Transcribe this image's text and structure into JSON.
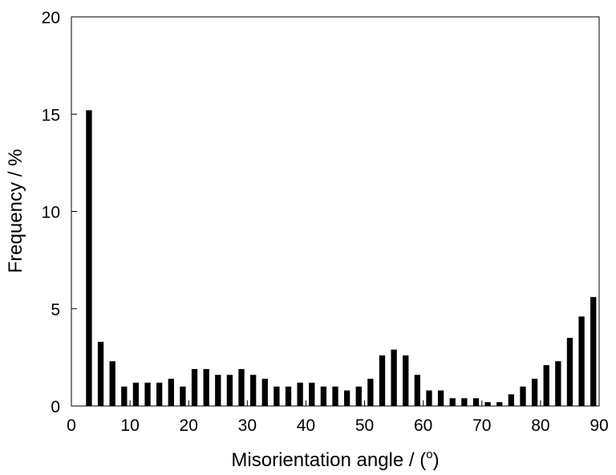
{
  "chart_data": {
    "type": "bar",
    "xlabel": "Misorientation angle / (",
    "xlabel_sup": "o",
    "xlabel_end": ")",
    "ylabel": "Frequency / %",
    "xlim": [
      0,
      90
    ],
    "ylim": [
      0,
      20
    ],
    "xticks": [
      0,
      10,
      20,
      30,
      40,
      50,
      60,
      70,
      80,
      90
    ],
    "yticks": [
      0,
      5,
      10,
      15,
      20
    ],
    "bar_width": 1.0,
    "x": [
      3,
      5,
      7,
      9,
      11,
      13,
      15,
      17,
      19,
      21,
      23,
      25,
      27,
      29,
      31,
      33,
      35,
      37,
      39,
      41,
      43,
      45,
      47,
      49,
      51,
      53,
      55,
      57,
      59,
      61,
      63,
      65,
      67,
      69,
      71,
      73,
      75,
      77,
      79,
      81,
      83,
      85,
      87,
      89
    ],
    "values": [
      15.2,
      3.3,
      2.3,
      1.0,
      1.2,
      1.2,
      1.2,
      1.4,
      1.0,
      1.9,
      1.9,
      1.6,
      1.6,
      1.9,
      1.6,
      1.4,
      1.0,
      1.0,
      1.2,
      1.2,
      1.0,
      1.0,
      0.8,
      1.0,
      1.4,
      2.6,
      2.9,
      2.6,
      1.6,
      0.8,
      0.8,
      0.4,
      0.4,
      0.4,
      0.2,
      0.2,
      0.6,
      1.0,
      1.4,
      2.1,
      2.3,
      3.5,
      4.6,
      5.6
    ],
    "bar_color": "#000000",
    "grid": false,
    "legend": false
  }
}
